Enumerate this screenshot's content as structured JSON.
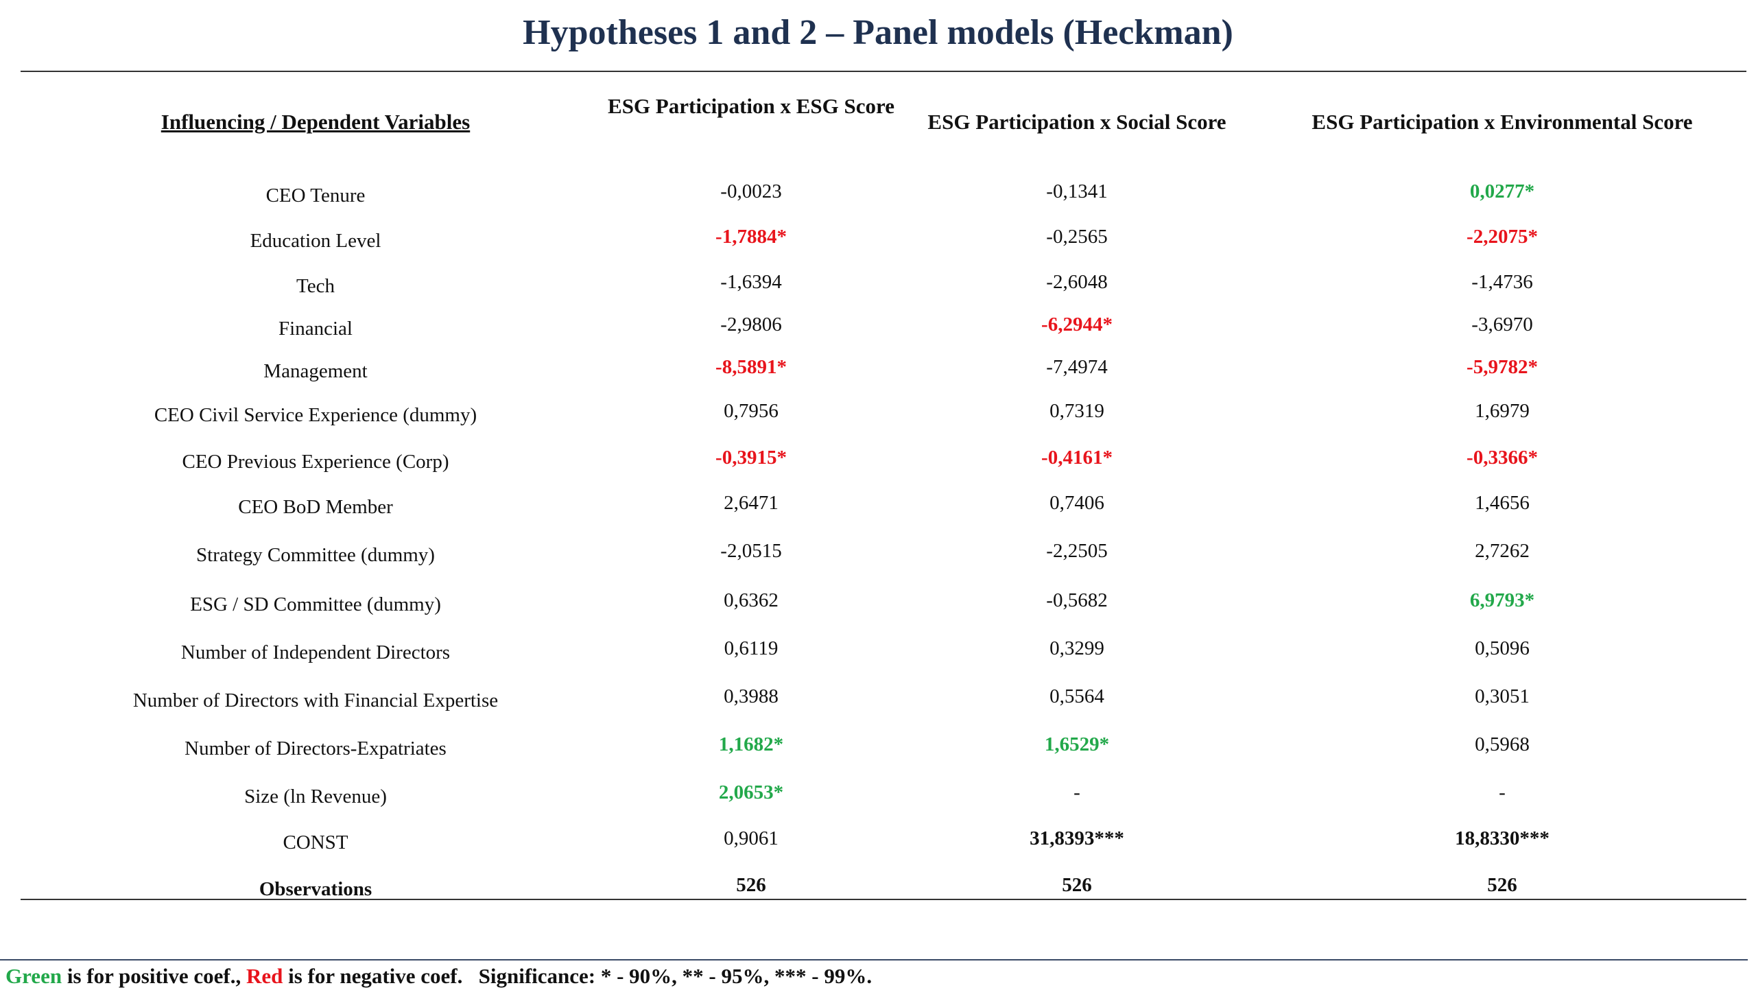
{
  "title": "Hypotheses 1 and 2 – Panel models (Heckman)",
  "headers": {
    "variables": "Influencing / Dependent Variables",
    "col1": "ESG Participation x ESG Score",
    "col2": "ESG Participation x Social Score",
    "col3": "ESG Participation x Environmental Score"
  },
  "rows": [
    {
      "label": "CEO Tenure",
      "v1": "-0,0023",
      "s1": "plain",
      "v2": "-0,1341",
      "s2": "plain",
      "v3": "0,0277*",
      "s3": "pos"
    },
    {
      "label": "Education Level",
      "v1": "-1,7884*",
      "s1": "neg",
      "v2": "-0,2565",
      "s2": "plain",
      "v3": "-2,2075*",
      "s3": "neg"
    },
    {
      "label": "Tech",
      "v1": "-1,6394",
      "s1": "plain",
      "v2": "-2,6048",
      "s2": "plain",
      "v3": "-1,4736",
      "s3": "plain"
    },
    {
      "label": "Financial",
      "v1": "-2,9806",
      "s1": "plain",
      "v2": "-6,2944*",
      "s2": "neg",
      "v3": "-3,6970",
      "s3": "plain"
    },
    {
      "label": "Management",
      "v1": "-8,5891*",
      "s1": "neg",
      "v2": "-7,4974",
      "s2": "plain",
      "v3": "-5,9782*",
      "s3": "neg"
    },
    {
      "label": "CEO Civil Service Experience (dummy)",
      "v1": "0,7956",
      "s1": "plain",
      "v2": "0,7319",
      "s2": "plain",
      "v3": "1,6979",
      "s3": "plain"
    },
    {
      "label": "CEO Previous Experience (Corp)",
      "v1": "-0,3915*",
      "s1": "neg",
      "v2": "-0,4161*",
      "s2": "neg",
      "v3": "-0,3366*",
      "s3": "neg"
    },
    {
      "label": "CEO BoD Member",
      "v1": "2,6471",
      "s1": "plain",
      "v2": "0,7406",
      "s2": "plain",
      "v3": "1,4656",
      "s3": "plain"
    },
    {
      "label": "Strategy Committee (dummy)",
      "v1": "-2,0515",
      "s1": "plain",
      "v2": "-2,2505",
      "s2": "plain",
      "v3": "2,7262",
      "s3": "plain"
    },
    {
      "label": "ESG / SD Committee (dummy)",
      "v1": "0,6362",
      "s1": "plain",
      "v2": "-0,5682",
      "s2": "plain",
      "v3": "6,9793*",
      "s3": "pos"
    },
    {
      "label": "Number of Independent Directors",
      "v1": "0,6119",
      "s1": "plain",
      "v2": "0,3299",
      "s2": "plain",
      "v3": "0,5096",
      "s3": "plain"
    },
    {
      "label": "Number of Directors with Financial Expertise",
      "v1": "0,3988",
      "s1": "plain",
      "v2": "0,5564",
      "s2": "plain",
      "v3": "0,3051",
      "s3": "plain"
    },
    {
      "label": "Number of Directors-Expatriates",
      "v1": "1,1682*",
      "s1": "pos",
      "v2": "1,6529*",
      "s2": "pos",
      "v3": "0,5968",
      "s3": "plain"
    },
    {
      "label": "Size (ln Revenue)",
      "v1": "2,0653*",
      "s1": "pos",
      "v2": "-",
      "s2": "plain",
      "v3": "-",
      "s3": "plain"
    },
    {
      "label": "CONST",
      "v1": "0,9061",
      "s1": "plain",
      "v2": "31,8393***",
      "s2": "sig",
      "v3": "18,8330***",
      "s3": "sig"
    },
    {
      "label": "Observations",
      "v1": "526",
      "s1": "sig",
      "v2": "526",
      "s2": "sig",
      "v3": "526",
      "s3": "sig",
      "label_bold": true
    }
  ],
  "footer": {
    "green_word": "Green",
    "green_text": " is for positive coef., ",
    "red_word": "Red",
    "red_text": " is for negative coef.",
    "significance": "Significance: * - 90%, ** - 95%, *** - 99%."
  },
  "colors": {
    "title": "#1f3150",
    "positive": "#22a84a",
    "negative": "#e8141c"
  }
}
